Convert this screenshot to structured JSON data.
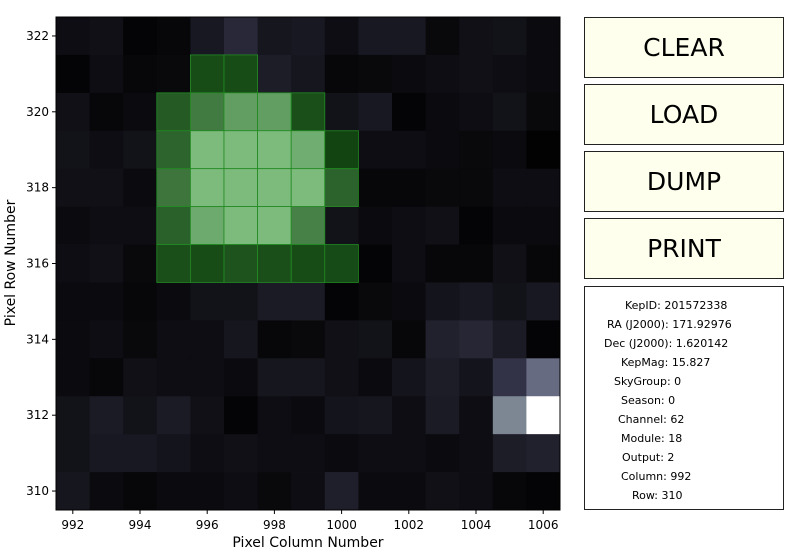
{
  "buttons": {
    "clear": "CLEAR",
    "load": "LOAD",
    "dump": "DUMP",
    "print": "PRINT"
  },
  "info": {
    "kepid": "KepID: 201572338",
    "ra": "RA (J2000): 171.92976",
    "dec": "Dec (J2000): 1.620142",
    "kepmag": "KepMag: 15.827",
    "skygroup": "SkyGroup: 0",
    "season": "Season: 0",
    "channel": "Channel: 62",
    "module": "Module: 18",
    "output": "Output: 2",
    "column": "Column: 992",
    "row": "Row: 310"
  },
  "chart_data": {
    "type": "heatmap",
    "xlabel": "Pixel Column Number",
    "ylabel": "Pixel Row Number",
    "xlim": [
      991.5,
      1006.5
    ],
    "ylim": [
      309.5,
      322.5
    ],
    "xticks": [
      "992",
      "994",
      "996",
      "998",
      "1000",
      "1002",
      "1004",
      "1006"
    ],
    "yticks": [
      "310",
      "312",
      "314",
      "316",
      "318",
      "320",
      "322"
    ],
    "columns": [
      992,
      993,
      994,
      995,
      996,
      997,
      998,
      999,
      1000,
      1001,
      1002,
      1003,
      1004,
      1005,
      1006
    ],
    "rows": [
      322,
      321,
      320,
      319,
      318,
      317,
      316,
      315,
      314,
      313,
      312,
      311,
      310
    ],
    "intensity": [
      [
        0.06,
        0.07,
        0.02,
        0.03,
        0.11,
        0.18,
        0.1,
        0.11,
        0.06,
        0.11,
        0.11,
        0.04,
        0.07,
        0.08,
        0.05
      ],
      [
        0.02,
        0.06,
        0.03,
        0.04,
        0.08,
        0.14,
        0.13,
        0.1,
        0.03,
        0.04,
        0.05,
        0.06,
        0.07,
        0.06,
        0.05
      ],
      [
        0.07,
        0.03,
        0.05,
        0.05,
        0.07,
        0.07,
        0.07,
        0.06,
        0.08,
        0.11,
        0.02,
        0.05,
        0.06,
        0.08,
        0.04
      ],
      [
        0.08,
        0.06,
        0.08,
        0.06,
        0.05,
        0.04,
        0.06,
        0.07,
        0.06,
        0.06,
        0.06,
        0.05,
        0.04,
        0.05,
        0.01
      ],
      [
        0.07,
        0.07,
        0.05,
        0.04,
        0.05,
        0.06,
        0.05,
        0.06,
        0.05,
        0.03,
        0.03,
        0.04,
        0.04,
        0.06,
        0.06
      ],
      [
        0.05,
        0.06,
        0.06,
        0.05,
        0.06,
        0.05,
        0.05,
        0.06,
        0.08,
        0.05,
        0.06,
        0.07,
        0.02,
        0.05,
        0.05
      ],
      [
        0.06,
        0.07,
        0.04,
        0.05,
        0.05,
        0.06,
        0.06,
        0.05,
        0.05,
        0.02,
        0.06,
        0.03,
        0.03,
        0.07,
        0.03
      ],
      [
        0.05,
        0.05,
        0.03,
        0.05,
        0.08,
        0.08,
        0.12,
        0.12,
        0.02,
        0.04,
        0.05,
        0.09,
        0.11,
        0.08,
        0.11
      ],
      [
        0.05,
        0.06,
        0.04,
        0.06,
        0.06,
        0.1,
        0.03,
        0.04,
        0.07,
        0.08,
        0.03,
        0.15,
        0.17,
        0.12,
        0.02
      ],
      [
        0.05,
        0.03,
        0.07,
        0.06,
        0.06,
        0.05,
        0.1,
        0.1,
        0.07,
        0.05,
        0.09,
        0.13,
        0.09,
        0.23,
        0.46
      ],
      [
        0.08,
        0.12,
        0.08,
        0.12,
        0.07,
        0.02,
        0.06,
        0.05,
        0.09,
        0.1,
        0.06,
        0.12,
        0.06,
        0.56,
        1.0
      ],
      [
        0.08,
        0.11,
        0.11,
        0.09,
        0.06,
        0.07,
        0.06,
        0.06,
        0.05,
        0.06,
        0.06,
        0.05,
        0.06,
        0.13,
        0.15
      ],
      [
        0.1,
        0.05,
        0.03,
        0.05,
        0.05,
        0.06,
        0.04,
        0.06,
        0.14,
        0.05,
        0.05,
        0.07,
        0.06,
        0.03,
        0.02
      ]
    ],
    "mask": [
      {
        "col": 996,
        "row": 321
      },
      {
        "col": 997,
        "row": 321
      },
      {
        "col": 995,
        "row": 320
      },
      {
        "col": 996,
        "row": 320
      },
      {
        "col": 997,
        "row": 320
      },
      {
        "col": 998,
        "row": 320
      },
      {
        "col": 999,
        "row": 320
      },
      {
        "col": 995,
        "row": 319
      },
      {
        "col": 996,
        "row": 319
      },
      {
        "col": 997,
        "row": 319
      },
      {
        "col": 998,
        "row": 319
      },
      {
        "col": 999,
        "row": 319
      },
      {
        "col": 1000,
        "row": 319
      },
      {
        "col": 995,
        "row": 318
      },
      {
        "col": 996,
        "row": 318
      },
      {
        "col": 997,
        "row": 318
      },
      {
        "col": 998,
        "row": 318
      },
      {
        "col": 999,
        "row": 318
      },
      {
        "col": 1000,
        "row": 318
      },
      {
        "col": 995,
        "row": 317
      },
      {
        "col": 996,
        "row": 317
      },
      {
        "col": 997,
        "row": 317
      },
      {
        "col": 998,
        "row": 317
      },
      {
        "col": 999,
        "row": 317
      },
      {
        "col": 995,
        "row": 316
      },
      {
        "col": 996,
        "row": 316
      },
      {
        "col": 997,
        "row": 316
      },
      {
        "col": 998,
        "row": 316
      },
      {
        "col": 999,
        "row": 316
      },
      {
        "col": 1000,
        "row": 316
      }
    ],
    "mask_intensity": [
      [
        0.1,
        0.1
      ],
      [
        0.2,
        0.42,
        0.66,
        0.66,
        0.12
      ],
      [
        0.26,
        0.86,
        0.86,
        0.86,
        0.76,
        0.05
      ],
      [
        0.38,
        0.86,
        0.86,
        0.86,
        0.86,
        0.25
      ],
      [
        0.24,
        0.74,
        0.86,
        0.86,
        0.46
      ],
      [
        0.12,
        0.1,
        0.15,
        0.12,
        0.1,
        0.09
      ]
    ],
    "colors": {
      "colormap": "bone",
      "mask_low": "#0a3d0a",
      "mask_high": "#90d090",
      "mask_edge": "#228b22"
    }
  }
}
